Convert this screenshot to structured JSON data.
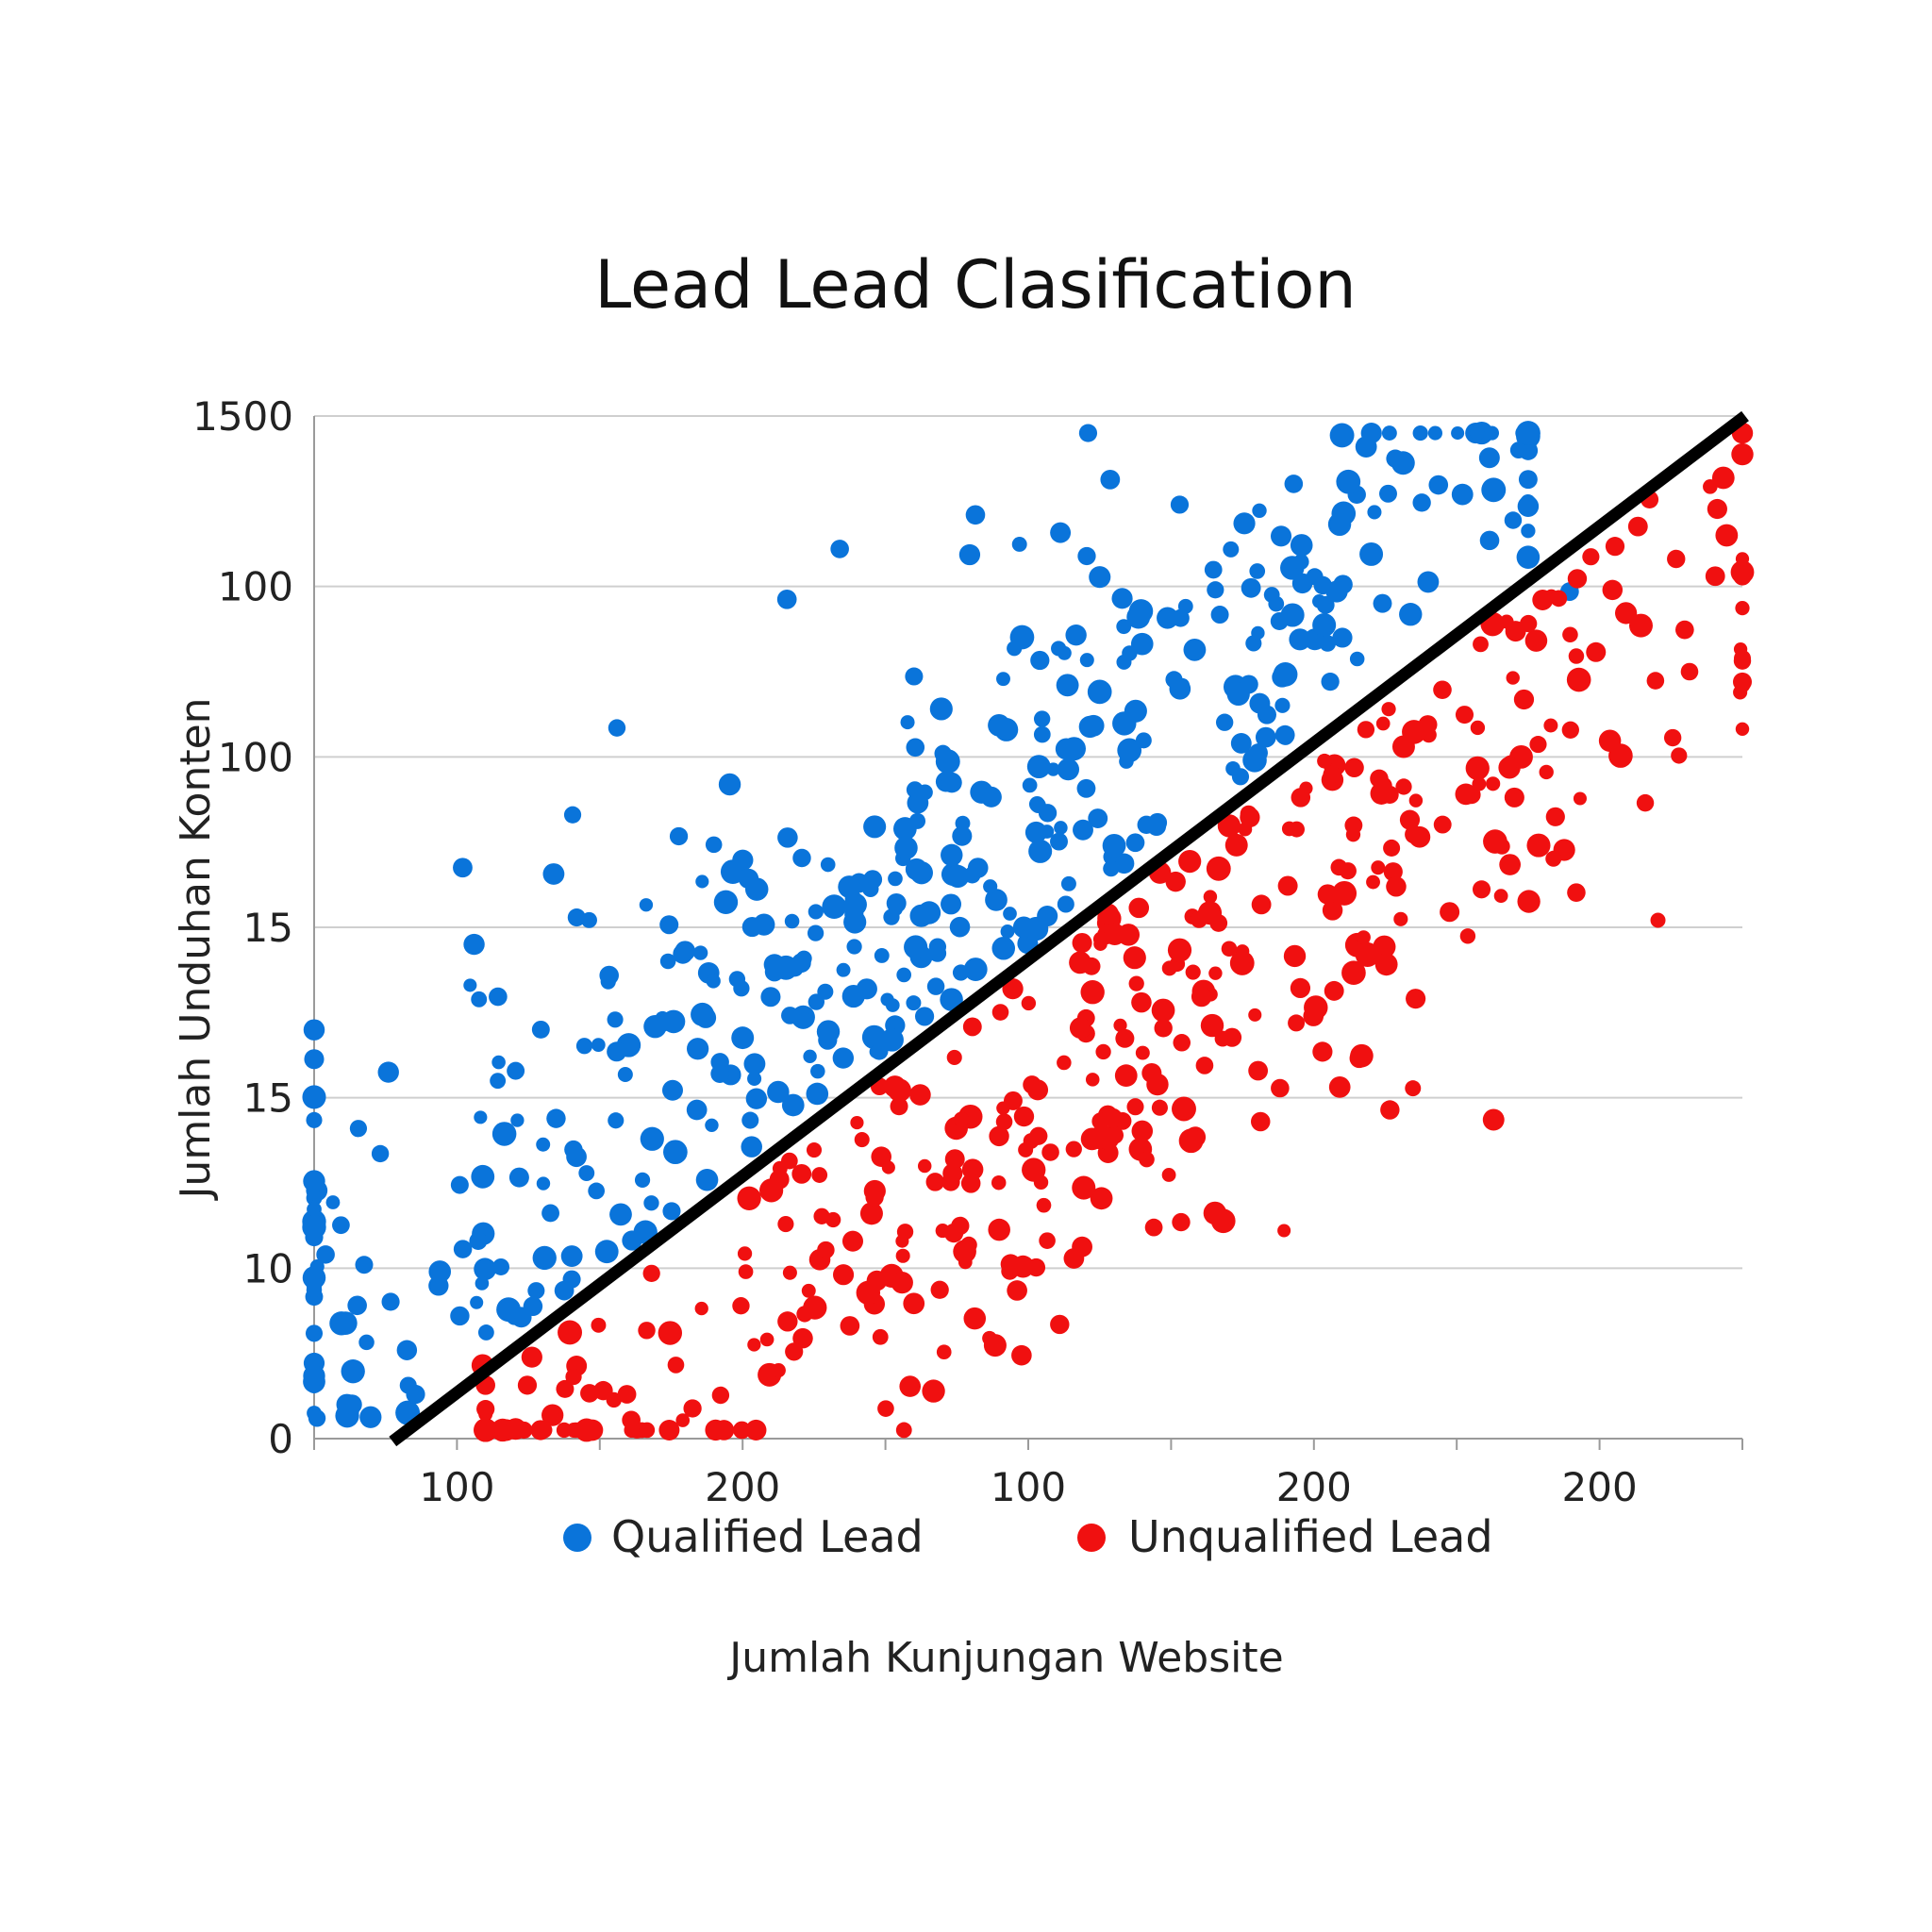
{
  "chart_data": {
    "type": "scatter",
    "title": "Lead Lead Clasification",
    "xlabel": "Jumlah Kunjungan Website",
    "ylabel": "Jumlah Unduhan Konten",
    "x_tick_labels": [
      "100",
      "200",
      "100",
      "200",
      "200"
    ],
    "y_tick_labels": [
      "0",
      "10",
      "15",
      "15",
      "100",
      "100",
      "1500"
    ],
    "xlim": [
      0,
      100
    ],
    "ylim": [
      0,
      6
    ],
    "grid": true,
    "legend_position": "bottom",
    "colors": {
      "qualified": "#0a74da",
      "unqualified": "#f01010",
      "boundary": "#000000"
    },
    "decision_boundary": {
      "x": [
        5.5,
        100
      ],
      "y": [
        0,
        6
      ]
    },
    "series": [
      {
        "name": "Qualified Lead",
        "generator": {
          "count": 420,
          "seed": 17,
          "x_range": [
            0,
            85
          ],
          "offset_mean": 0.95,
          "offset_sd": 0.62,
          "y_sd": 0.55
        },
        "values": [
          {
            "x": 0.2,
            "y": 0.12
          },
          {
            "x": 2.3,
            "y": 0.2
          },
          {
            "x": 7.1,
            "y": 0.26
          },
          {
            "x": 0.8,
            "y": 1.08
          },
          {
            "x": 3.5,
            "y": 1.02
          },
          {
            "x": 8.8,
            "y": 0.98
          },
          {
            "x": 10.2,
            "y": 0.72
          },
          {
            "x": 3.1,
            "y": 1.82
          },
          {
            "x": 5.2,
            "y": 2.15
          },
          {
            "x": 10.4,
            "y": 3.35
          },
          {
            "x": 11.2,
            "y": 2.9
          },
          {
            "x": 21.2,
            "y": 4.17
          },
          {
            "x": 18.1,
            "y": 3.66
          },
          {
            "x": 36.8,
            "y": 5.22
          },
          {
            "x": 46.3,
            "y": 5.42
          },
          {
            "x": 60.6,
            "y": 5.48
          },
          {
            "x": 63.1,
            "y": 4.98
          },
          {
            "x": 71.6,
            "y": 4.97
          },
          {
            "x": 75.7,
            "y": 5.75
          },
          {
            "x": 80.4,
            "y": 5.54
          },
          {
            "x": 82.3,
            "y": 5.27
          },
          {
            "x": 87.9,
            "y": 4.97
          }
        ]
      },
      {
        "name": "Unqualified Lead",
        "generator": {
          "count": 400,
          "seed": 91,
          "x_range": [
            12,
            100
          ],
          "offset_mean": -0.95,
          "offset_sd": 0.62,
          "y_sd": 0.55
        },
        "values": [
          {
            "x": 11.8,
            "y": 0.43
          },
          {
            "x": 21.9,
            "y": 0.26
          },
          {
            "x": 33.6,
            "y": 0.51
          },
          {
            "x": 52.2,
            "y": 0.67
          },
          {
            "x": 60.7,
            "y": 1.27
          },
          {
            "x": 49.7,
            "y": 1.89
          },
          {
            "x": 70.6,
            "y": 2.27
          },
          {
            "x": 77.4,
            "y": 3.53
          },
          {
            "x": 93.2,
            "y": 3.73
          },
          {
            "x": 96.3,
            "y": 4.5
          },
          {
            "x": 93.5,
            "y": 5.51
          },
          {
            "x": 98.9,
            "y": 5.3
          },
          {
            "x": 100,
            "y": 4.44
          },
          {
            "x": 79.5,
            "y": 3.09
          }
        ]
      }
    ]
  }
}
